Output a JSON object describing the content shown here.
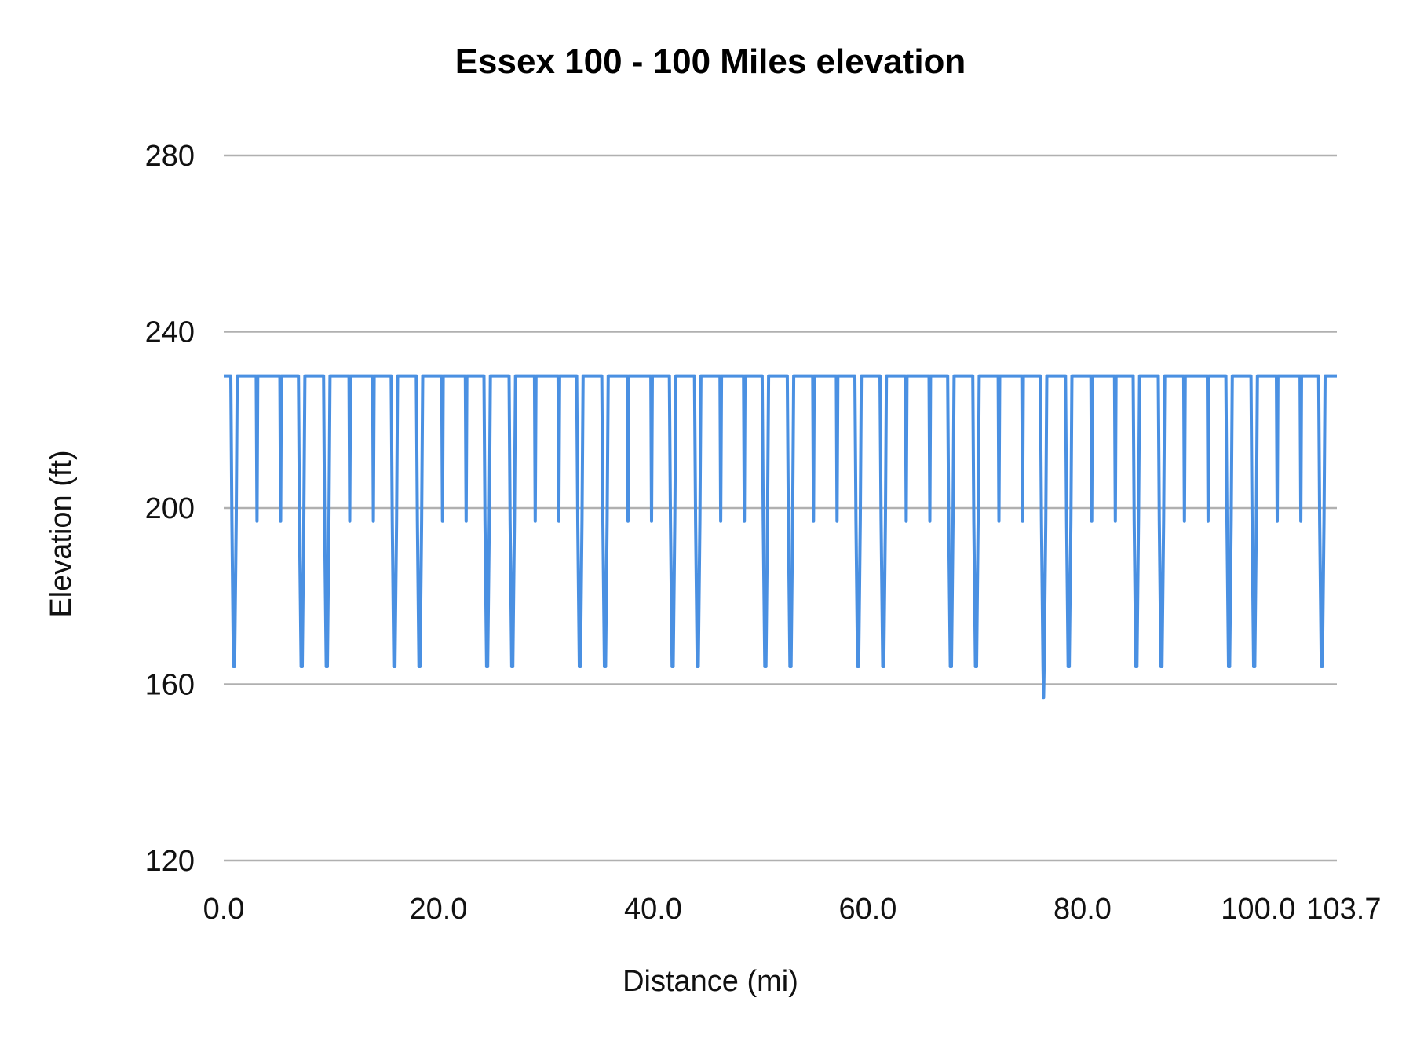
{
  "chart_data": {
    "type": "line",
    "title": "Essex 100 - 100 Miles elevation",
    "xlabel": "Distance (mi)",
    "ylabel": "Elevation (ft)",
    "xlim": [
      0,
      103.7
    ],
    "ylim": [
      120,
      280
    ],
    "x_ticks": [
      "0.0",
      "20.0",
      "40.0",
      "60.0",
      "80.0",
      "100.0",
      "103.7"
    ],
    "x_tick_values": [
      0,
      20,
      40,
      60,
      80,
      100,
      103.7
    ],
    "y_ticks": [
      "120",
      "160",
      "200",
      "240",
      "280"
    ],
    "y_tick_values": [
      120,
      160,
      200,
      240,
      280
    ],
    "grid": "horizontal",
    "legend": "none",
    "line_color": "#4a90e2",
    "series": [
      {
        "x": [
          0,
          0.66,
          0.76,
          0.91,
          1.01,
          1.16,
          1.26,
          3.03,
          3.1,
          3.17,
          5.23,
          5.3,
          5.37,
          6.96,
          7.06,
          7.21,
          7.31,
          7.46,
          7.56,
          9.3,
          9.4,
          9.55,
          9.65,
          9.8,
          9.9,
          11.67,
          11.74,
          11.81,
          13.87,
          13.94,
          14.01,
          15.6,
          15.7,
          15.85,
          15.95,
          16.1,
          16.2,
          17.94,
          18.04,
          18.19,
          18.29,
          18.44,
          18.54,
          20.31,
          20.38,
          20.45,
          22.51,
          22.58,
          22.65,
          24.24,
          24.34,
          24.49,
          24.59,
          24.74,
          24.84,
          26.58,
          26.68,
          26.83,
          26.93,
          27.08,
          27.18,
          28.95,
          29.02,
          29.09,
          31.15,
          31.22,
          31.29,
          32.88,
          32.98,
          33.13,
          33.23,
          33.38,
          33.48,
          35.22,
          35.32,
          35.47,
          35.57,
          35.72,
          35.82,
          37.59,
          37.66,
          37.73,
          39.79,
          39.86,
          39.93,
          41.52,
          41.62,
          41.77,
          41.87,
          42.02,
          42.12,
          43.86,
          43.96,
          44.11,
          44.21,
          44.36,
          44.46,
          46.23,
          46.3,
          46.37,
          48.43,
          48.5,
          48.57,
          50.16,
          50.26,
          50.41,
          50.51,
          50.66,
          50.76,
          52.5,
          52.6,
          52.75,
          52.85,
          53.0,
          53.1,
          54.87,
          54.94,
          55.01,
          57.07,
          57.14,
          57.21,
          58.8,
          58.9,
          59.05,
          59.15,
          59.3,
          59.4,
          61.14,
          61.24,
          61.39,
          61.49,
          61.64,
          61.74,
          63.51,
          63.58,
          63.65,
          65.71,
          65.78,
          65.85,
          67.44,
          67.54,
          67.69,
          67.79,
          67.94,
          68.04,
          69.78,
          69.88,
          70.03,
          70.13,
          70.28,
          70.38,
          72.15,
          72.22,
          72.29,
          74.35,
          74.42,
          74.49,
          76.08,
          76.18,
          76.33,
          76.38,
          76.43,
          76.58,
          76.68,
          78.42,
          78.52,
          78.67,
          78.77,
          78.92,
          79.02,
          80.79,
          80.86,
          80.93,
          82.99,
          83.06,
          83.13,
          84.72,
          84.82,
          84.97,
          85.07,
          85.22,
          85.32,
          87.06,
          87.16,
          87.31,
          87.41,
          87.56,
          87.66,
          89.43,
          89.5,
          89.57,
          91.63,
          91.7,
          91.77,
          93.36,
          93.46,
          93.61,
          93.71,
          93.86,
          93.96,
          95.7,
          95.8,
          95.95,
          96.05,
          96.2,
          96.3,
          98.07,
          98.14,
          98.21,
          100.27,
          100.34,
          100.41,
          102.0,
          102.1,
          102.25,
          102.35,
          102.5,
          102.6,
          103.7
        ],
        "y": [
          230,
          230,
          197,
          164,
          164,
          197,
          230,
          230,
          197,
          230,
          230,
          197,
          230,
          230,
          197,
          164,
          164,
          197,
          230,
          230,
          197,
          164,
          164,
          197,
          230,
          230,
          197,
          230,
          230,
          197,
          230,
          230,
          197,
          164,
          164,
          197,
          230,
          230,
          197,
          164,
          164,
          197,
          230,
          230,
          197,
          230,
          230,
          197,
          230,
          230,
          197,
          164,
          164,
          197,
          230,
          230,
          197,
          164,
          164,
          197,
          230,
          230,
          197,
          230,
          230,
          197,
          230,
          230,
          197,
          164,
          164,
          197,
          230,
          230,
          197,
          164,
          164,
          197,
          230,
          230,
          197,
          230,
          230,
          197,
          230,
          230,
          197,
          164,
          164,
          197,
          230,
          230,
          197,
          164,
          164,
          197,
          230,
          230,
          197,
          230,
          230,
          197,
          230,
          230,
          197,
          164,
          164,
          197,
          230,
          230,
          197,
          164,
          164,
          197,
          230,
          230,
          197,
          230,
          230,
          197,
          230,
          230,
          197,
          164,
          164,
          197,
          230,
          230,
          197,
          164,
          164,
          197,
          230,
          230,
          197,
          230,
          230,
          197,
          230,
          230,
          197,
          164,
          164,
          197,
          230,
          230,
          197,
          164,
          164,
          197,
          230,
          230,
          197,
          230,
          230,
          197,
          230,
          230,
          197,
          164,
          157,
          164,
          197,
          230,
          230,
          197,
          164,
          164,
          197,
          230,
          230,
          197,
          230,
          230,
          197,
          230,
          230,
          197,
          164,
          164,
          197,
          230,
          230,
          197,
          164,
          164,
          197,
          230,
          230,
          197,
          230,
          230,
          197,
          230,
          230,
          197,
          164,
          164,
          197,
          230,
          230,
          197,
          164,
          164,
          197,
          230,
          230,
          197,
          230,
          230,
          197,
          230,
          230,
          197,
          164,
          164,
          197,
          230,
          230
        ]
      }
    ]
  }
}
